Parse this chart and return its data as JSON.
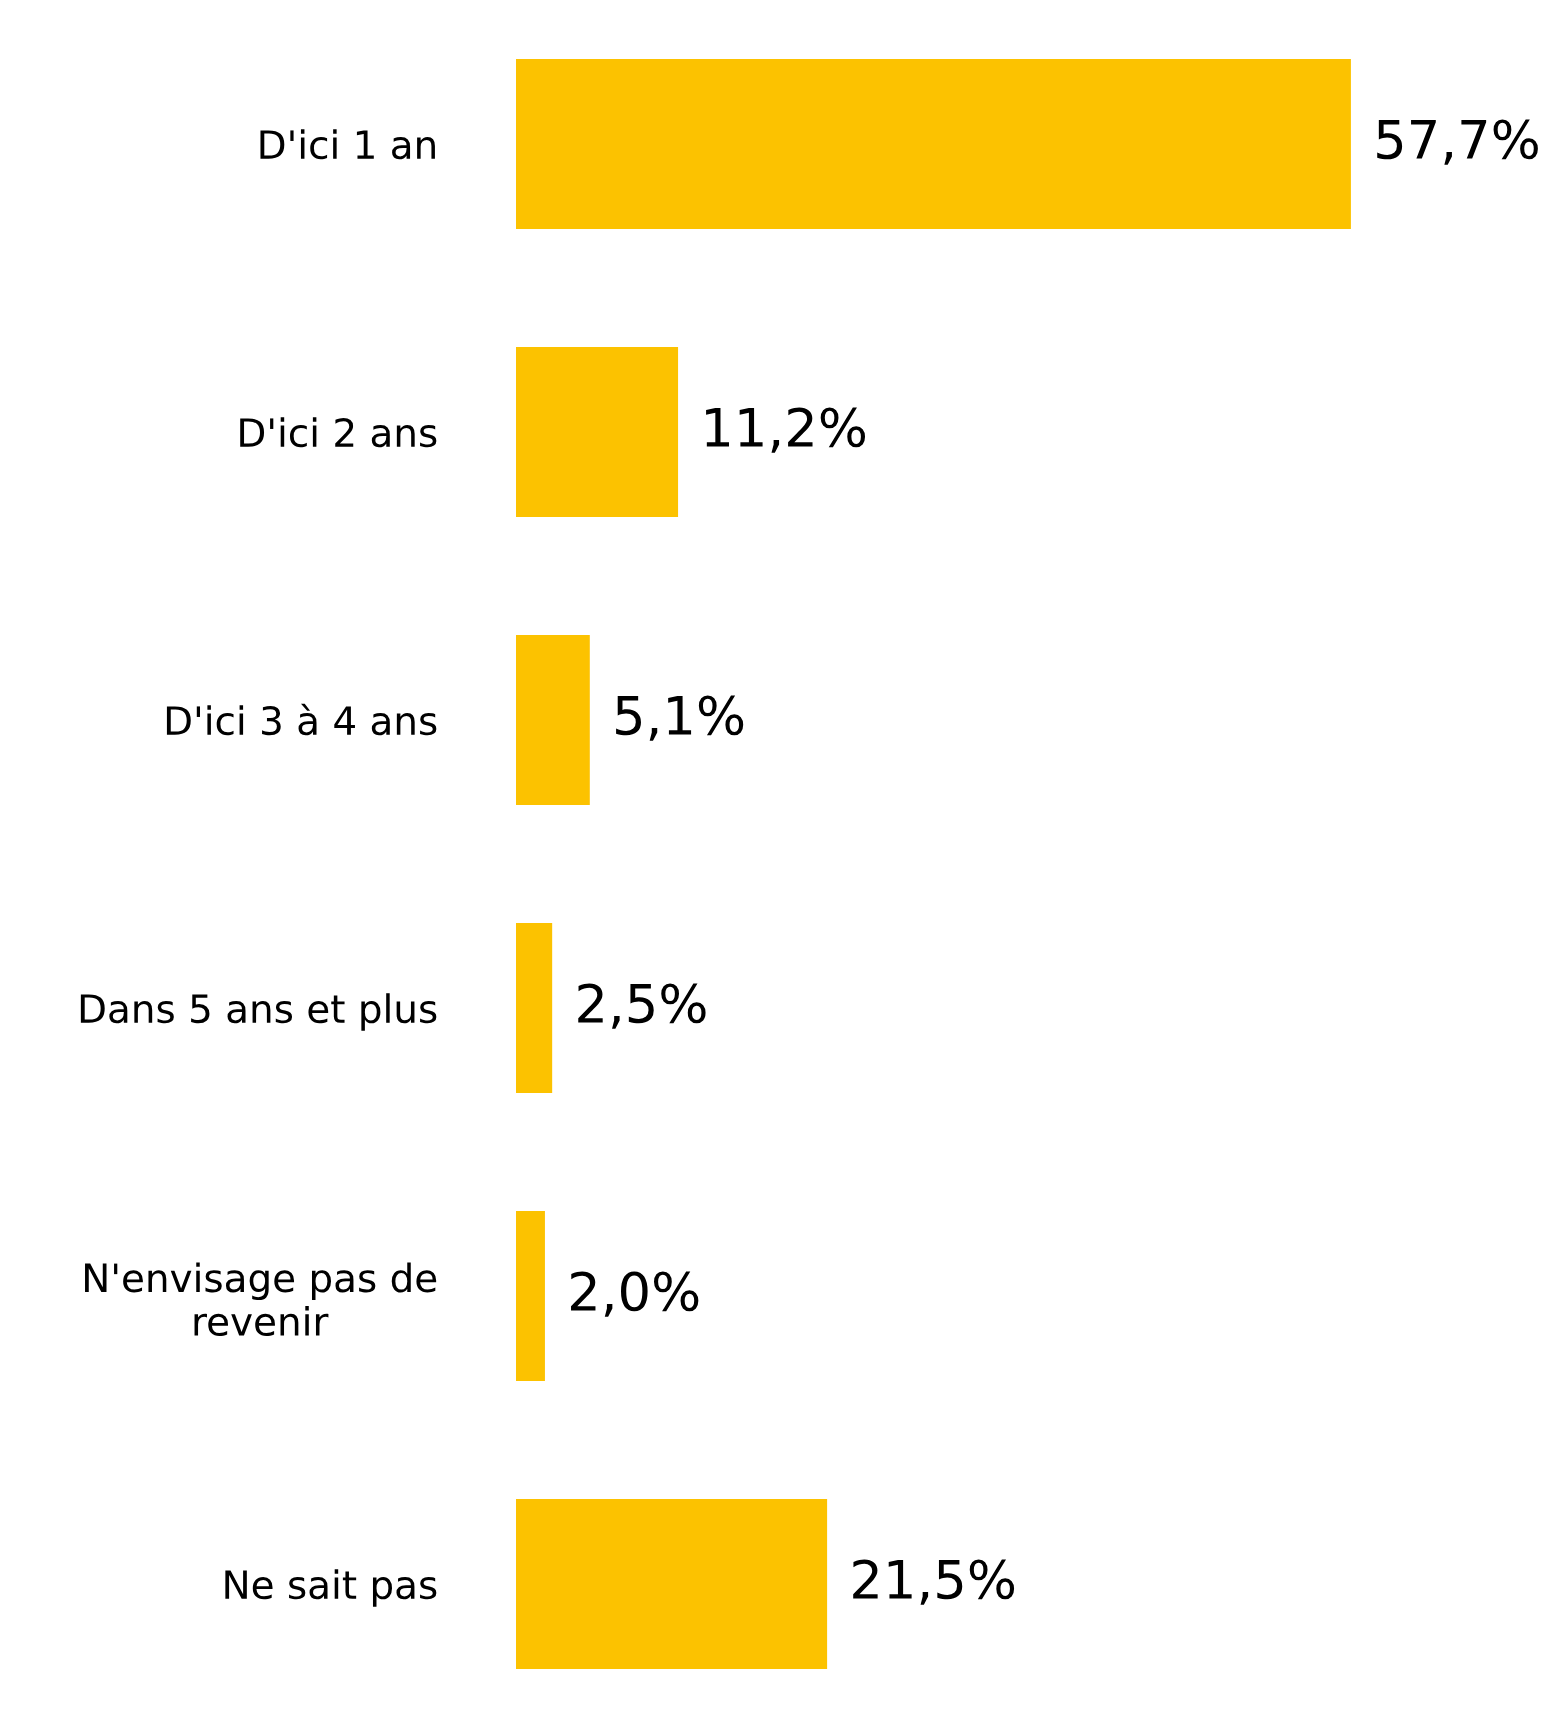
{
  "chart_data": {
    "type": "bar",
    "orientation": "horizontal",
    "categories": [
      "D'ici 1 an",
      "D'ici 2 ans",
      "D'ici 3 à 4 ans",
      "Dans 5 ans et plus",
      "N'envisage pas de\nrevenir",
      "Ne sait pas"
    ],
    "values": [
      57.7,
      11.2,
      5.1,
      2.5,
      2.0,
      21.5
    ],
    "value_labels": [
      "57,7%",
      "11,2%",
      "5,1%",
      "2,5%",
      "2,0%",
      "21,5%"
    ],
    "color": "#fcc200",
    "grid": false,
    "legend": false
  }
}
